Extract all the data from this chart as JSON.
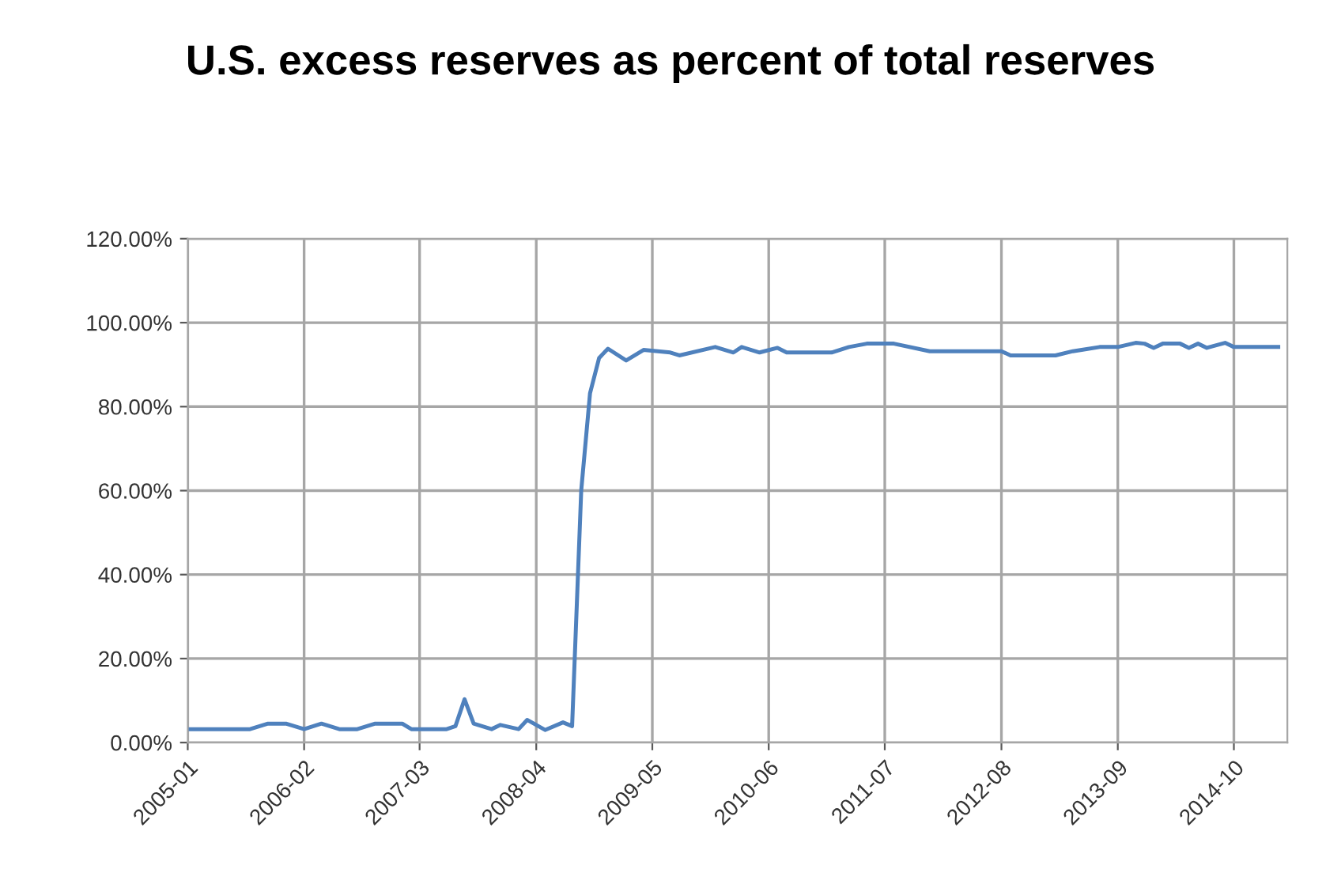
{
  "chart_data": {
    "type": "line",
    "title": "U.S. excess reserves as percent of total reserves",
    "x": [
      "2005-01",
      "2005-08",
      "2005-10",
      "2005-12",
      "2006-02",
      "2006-04",
      "2006-06",
      "2006-08",
      "2006-10",
      "2007-01",
      "2007-02",
      "2007-06",
      "2007-07",
      "2007-08",
      "2007-09",
      "2007-11",
      "2007-12",
      "2008-02",
      "2008-03",
      "2008-05",
      "2008-07",
      "2008-08",
      "2008-09",
      "2008-10",
      "2008-11",
      "2008-12",
      "2009-02",
      "2009-04",
      "2009-07",
      "2009-08",
      "2009-12",
      "2010-02",
      "2010-03",
      "2010-05",
      "2010-07",
      "2010-08",
      "2011-01",
      "2011-03",
      "2011-05",
      "2011-08",
      "2011-12",
      "2012-08",
      "2012-09",
      "2013-02",
      "2013-04",
      "2013-05",
      "2013-07",
      "2013-09",
      "2013-11",
      "2013-12",
      "2014-01",
      "2014-02",
      "2014-04",
      "2014-05",
      "2014-06",
      "2014-07",
      "2014-09",
      "2014-10",
      "2015-03"
    ],
    "series": [
      {
        "color": "#4f81bd",
        "values": [
          3.2,
          3.2,
          4.5,
          4.5,
          3.2,
          4.5,
          3.2,
          3.2,
          4.5,
          4.5,
          3.2,
          3.2,
          3.9,
          10.3,
          4.5,
          3.2,
          4.2,
          3.2,
          5.4,
          3.0,
          4.8,
          3.9,
          60,
          83.2,
          91.6,
          93.8,
          91.0,
          93.5,
          92.9,
          92.2,
          94.2,
          92.9,
          94.2,
          92.9,
          94.0,
          92.9,
          92.9,
          94.2,
          95.0,
          95.0,
          93.2,
          93.2,
          92.2,
          92.2,
          93.2,
          93.5,
          94.2,
          94.2,
          95.2,
          95.0,
          94.0,
          95.0,
          95.0,
          94.0,
          95.0,
          94.0,
          95.2,
          94.2,
          94.2
        ]
      }
    ],
    "xlim": [
      "2005-01",
      "2015-04"
    ],
    "xticks": [
      "2005-01",
      "2006-02",
      "2007-03",
      "2008-04",
      "2009-05",
      "2010-06",
      "2011-07",
      "2012-08",
      "2013-09",
      "2014-10"
    ],
    "ylim": [
      0,
      120
    ],
    "yticks": [
      {
        "value": 0,
        "label": "0.00%"
      },
      {
        "value": 20,
        "label": "20.00%"
      },
      {
        "value": 40,
        "label": "40.00%"
      },
      {
        "value": 60,
        "label": "60.00%"
      },
      {
        "value": 80,
        "label": "80.00%"
      },
      {
        "value": 100,
        "label": "100.00%"
      },
      {
        "value": 120,
        "label": "120.00%"
      }
    ],
    "grid": true,
    "marker": "none",
    "line_style": "solid"
  }
}
